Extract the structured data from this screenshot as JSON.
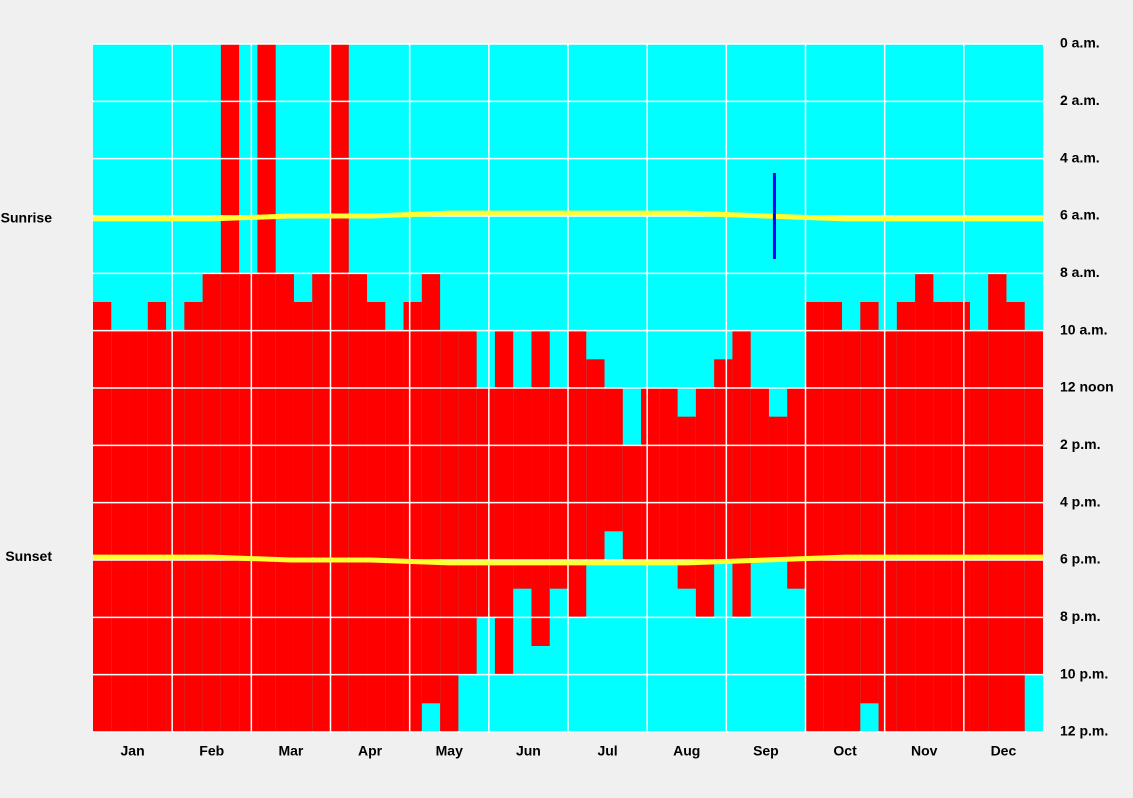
{
  "chart_data": {
    "type": "occupancy",
    "categories": [
      "Jan",
      "Feb",
      "Mar",
      "Apr",
      "May",
      "Jun",
      "Jul",
      "Aug",
      "Sep",
      "Oct",
      "Nov",
      "Dec"
    ],
    "xlim": [
      0,
      52
    ],
    "ylim": [
      0,
      24
    ],
    "yticks": [
      {
        "value": 0,
        "label": "0 a.m."
      },
      {
        "value": 2,
        "label": "2 a.m."
      },
      {
        "value": 4,
        "label": "4 a.m."
      },
      {
        "value": 6,
        "label": "6 a.m."
      },
      {
        "value": 8,
        "label": "8 a.m."
      },
      {
        "value": 10,
        "label": "10 a.m."
      },
      {
        "value": 12,
        "label": "12 noon"
      },
      {
        "value": 14,
        "label": "2 p.m."
      },
      {
        "value": 16,
        "label": "4 p.m."
      },
      {
        "value": 18,
        "label": "6 p.m."
      },
      {
        "value": 20,
        "label": "8 p.m."
      },
      {
        "value": 22,
        "label": "10 p.m."
      },
      {
        "value": 24,
        "label": "12 p.m."
      }
    ],
    "grid": true,
    "background_color": "#00ffff",
    "occupied": {
      "color": "#ff0000",
      "start": [
        9,
        10,
        10,
        9,
        10,
        9,
        8,
        0,
        8,
        0,
        8,
        9,
        8,
        0,
        8,
        9,
        10,
        9,
        8,
        10,
        10,
        12,
        10,
        12,
        10,
        12,
        10,
        11,
        12,
        14,
        12,
        12,
        13,
        12,
        11,
        10,
        12,
        13,
        12,
        9,
        9,
        10,
        9,
        10,
        9,
        8,
        9,
        9,
        10,
        8,
        9,
        10
      ],
      "end": [
        24,
        24,
        24,
        24,
        24,
        24,
        24,
        24,
        24,
        24,
        24,
        24,
        24,
        24,
        24,
        24,
        24,
        24,
        23,
        24,
        22,
        20,
        22,
        19,
        21,
        19,
        20,
        18,
        17,
        18,
        18,
        18,
        19,
        20,
        18,
        20,
        18,
        18,
        19,
        24,
        24,
        24,
        23,
        24,
        24,
        24,
        24,
        24,
        24,
        24,
        24,
        22
      ]
    },
    "series": [
      {
        "name": "Sunrise",
        "color": "#ffff33",
        "values": [
          6.1,
          6.1,
          6.0,
          6.0,
          5.9,
          5.9,
          5.9,
          5.9,
          6.0,
          6.1,
          6.1,
          6.1
        ]
      },
      {
        "name": "Sunset",
        "color": "#ffff33",
        "values": [
          17.9,
          17.9,
          18.0,
          18.0,
          18.1,
          18.1,
          18.1,
          18.1,
          18.0,
          17.9,
          17.9,
          17.9
        ]
      }
    ],
    "marker": {
      "color": "#0000ff",
      "week": 37.3,
      "from": 4.5,
      "to": 7.5
    }
  }
}
